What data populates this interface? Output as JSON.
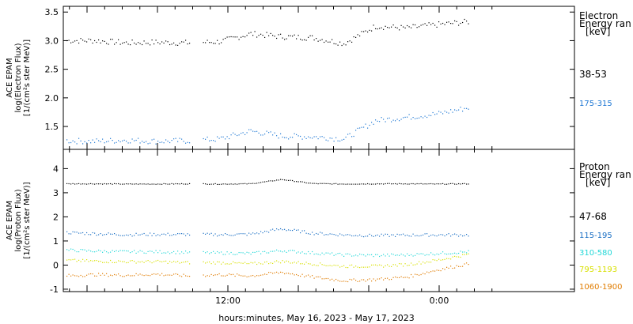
{
  "chart_data": [
    {
      "type": "scatter",
      "panel": "electron",
      "ylabel_lines": [
        "ACE EPAM",
        "log(Electron Flux)",
        "[1/(cm²s ster MeV)]"
      ],
      "ylim": [
        1.1,
        3.6
      ],
      "yticks": [
        1.5,
        2.0,
        2.5,
        3.0,
        3.5
      ],
      "ytick_labels": [
        "1.5",
        "2.0",
        "2.5",
        "3.0",
        "3.5"
      ],
      "legend_title": [
        "Electron",
        "Energy ran",
        "[keV]"
      ],
      "series": [
        {
          "name": "38-53",
          "color": "#000000",
          "base": [
            3.0,
            3.0,
            2.96,
            2.97,
            2.96,
            2.98,
            3.12,
            3.07,
            3.05,
            2.95,
            3.25,
            3.22,
            3.28,
            3.33
          ]
        },
        {
          "name": "175-315",
          "color": "#1f78d4",
          "base": [
            1.25,
            1.24,
            1.26,
            1.24,
            1.25,
            1.28,
            1.42,
            1.33,
            1.32,
            1.28,
            1.6,
            1.66,
            1.72,
            1.83
          ]
        }
      ]
    },
    {
      "type": "scatter",
      "panel": "proton",
      "ylabel_lines": [
        "ACE EPAM",
        "log(Proton Flux)",
        "[1/(cm²s ster MeV)]"
      ],
      "ylim": [
        -1.1,
        4.8
      ],
      "yticks": [
        -1,
        0,
        1,
        2,
        3,
        4
      ],
      "ytick_labels": [
        "-1",
        "0",
        "1",
        "2",
        "3",
        "4"
      ],
      "legend_title": [
        "Proton",
        "Energy ran",
        "[keV]"
      ],
      "series": [
        {
          "name": "47-68",
          "color": "#000000",
          "base": [
            3.37,
            3.37,
            3.36,
            3.36,
            3.37,
            3.36,
            3.37,
            3.55,
            3.38,
            3.36,
            3.37,
            3.37,
            3.36,
            3.37
          ]
        },
        {
          "name": "115-195",
          "color": "#1a6fc4",
          "base": [
            1.35,
            1.3,
            1.26,
            1.27,
            1.27,
            1.26,
            1.28,
            1.5,
            1.32,
            1.25,
            1.22,
            1.24,
            1.25,
            1.25
          ]
        },
        {
          "name": "310-580",
          "color": "#22d8d8",
          "base": [
            0.62,
            0.58,
            0.55,
            0.55,
            0.52,
            0.5,
            0.48,
            0.6,
            0.5,
            0.42,
            0.4,
            0.42,
            0.48,
            0.55
          ]
        },
        {
          "name": "795-1193",
          "color": "#d8e000",
          "base": [
            0.2,
            0.16,
            0.14,
            0.14,
            0.1,
            0.1,
            0.05,
            0.15,
            0.05,
            -0.05,
            -0.05,
            0.02,
            0.2,
            0.45
          ]
        },
        {
          "name": "1060-1900",
          "color": "#e07c00",
          "base": [
            -0.45,
            -0.4,
            -0.42,
            -0.38,
            -0.45,
            -0.4,
            -0.45,
            -0.3,
            -0.5,
            -0.65,
            -0.6,
            -0.5,
            -0.2,
            0.05
          ]
        }
      ]
    }
  ],
  "x_axis": {
    "tick_labels": [
      "12:00",
      "0:00"
    ],
    "xlabel": "hours:minutes, May 16, 2023 - May 17, 2023"
  }
}
